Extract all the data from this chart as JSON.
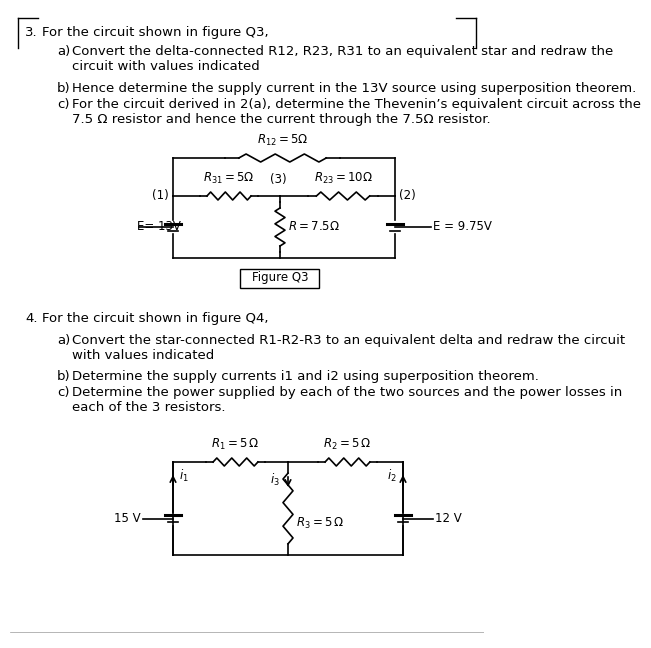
{
  "bg_color": "#ffffff",
  "q3_num": "3.",
  "q3_title": "For the circuit shown in figure Q3,",
  "q3a_letter": "a)",
  "q3a_text": "Convert the delta-connected R12, R23, R31 to an equivalent star and redraw the\ncircuit with values indicated",
  "q3b_letter": "b)",
  "q3b_text": "Hence determine the supply current in the 13V source using superposition theorem.",
  "q3c_letter": "c)",
  "q3c_text": "For the circuit derived in 2(a), determine the Thevenin’s equivalent circuit across the\n7.5 Ω resistor and hence the current through the 7.5Ω resistor.",
  "fig3_label": "Figure Q3",
  "q4_num": "4.",
  "q4_title": "For the circuit shown in figure Q4,",
  "q4a_letter": "a)",
  "q4a_text": "Convert the star-connected R1-R2-R3 to an equivalent delta and redraw the circuit\nwith values indicated",
  "q4b_letter": "b)",
  "q4b_text": "Determine the supply currents i1 and i2 using superposition theorem.",
  "q4c_letter": "c)",
  "q4c_text": "Determine the power supplied by each of the two sources and the power losses in\neach of the 3 resistors.",
  "font_size_text": 9.5,
  "font_size_circ": 8.5,
  "border_color": "#c0c0c0"
}
